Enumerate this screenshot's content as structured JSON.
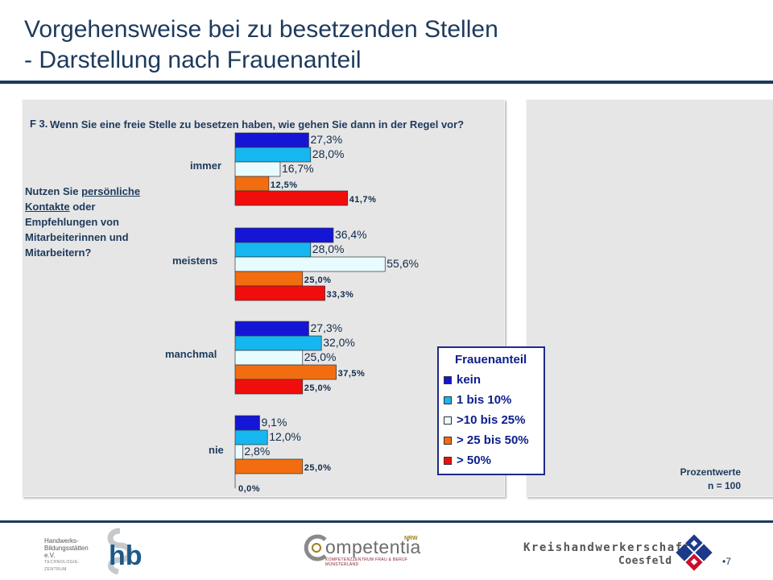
{
  "title": {
    "line1": "Vorgehensweise bei zu besetzenden Stellen",
    "line2": "- Darstellung nach Frauenanteil"
  },
  "question": {
    "number": "F 3.",
    "text": "Wenn Sie eine freie Stelle zu besetzen haben, wie gehen Sie dann in der Regel vor?"
  },
  "subquestion": {
    "before": "Nutzen Sie ",
    "underlined": "persönliche Kontakte",
    "after": " oder Empfehlungen von Mitarbeiterinnen und Mitarbeitern?"
  },
  "chart_data": {
    "type": "bar",
    "orientation": "horizontal",
    "categories": [
      "immer",
      "meistens",
      "manchmal",
      "nie"
    ],
    "series": [
      {
        "name": "kein",
        "color": "#1515d6",
        "values": [
          27.3,
          36.4,
          27.3,
          9.1
        ],
        "labels": [
          "27,3%",
          "36,4%",
          "27,3%",
          "9,1%"
        ]
      },
      {
        "name": "1 bis 10%",
        "color": "#16b6f0",
        "values": [
          28.0,
          28.0,
          32.0,
          12.0
        ],
        "labels": [
          "28,0%",
          "28,0%",
          "32,0%",
          "12,0%"
        ]
      },
      {
        "name": ">10 bis 25%",
        "color": "#e8fcff",
        "values": [
          16.7,
          55.6,
          25.0,
          2.8
        ],
        "labels": [
          "16,7%",
          "55,6%",
          "25,0%",
          "2,8%"
        ]
      },
      {
        "name": "> 25 bis 50%",
        "color": "#f26d10",
        "values": [
          12.5,
          25.0,
          37.5,
          25.0
        ],
        "labels": [
          "12,5%",
          "25,0%",
          "37,5%",
          "25,0%"
        ]
      },
      {
        "name": "> 50%",
        "color": "#f20d0d",
        "values": [
          41.7,
          33.3,
          25.0,
          0.0
        ],
        "labels": [
          "41,7%",
          "33,3%",
          "25,0%",
          "0,0%"
        ]
      }
    ],
    "label_styles": [
      "large",
      "large",
      "large",
      "small",
      "small"
    ],
    "xlim": [
      0,
      100
    ],
    "legend": {
      "title": "Frauenanteil",
      "position": "bottom-right"
    },
    "grid": false
  },
  "legend_items": [
    "kein",
    "1 bis 10%",
    ">10 bis 25%",
    "> 25 bis 50%",
    "> 50%"
  ],
  "footnote": {
    "line1": "Prozentwerte",
    "line2": "n = 100"
  },
  "logos": {
    "hb": {
      "line1": "Handwerks-",
      "line2": "Bildungsstätten e.V.",
      "line3": "TECHNOLOGIE-ZENTRUM",
      "mark": "hb"
    },
    "competentia": {
      "name": "ompetentia",
      "sup": "NRW",
      "sub1": "KOMPETENZZENTRUM FRAU & BERUF",
      "sub2": "MÜNSTERLAND"
    },
    "kreishandwerkerschaft": {
      "line1": "Kreishandwerkerschaft",
      "line2": "Coesfeld"
    }
  },
  "page_number": "•7"
}
